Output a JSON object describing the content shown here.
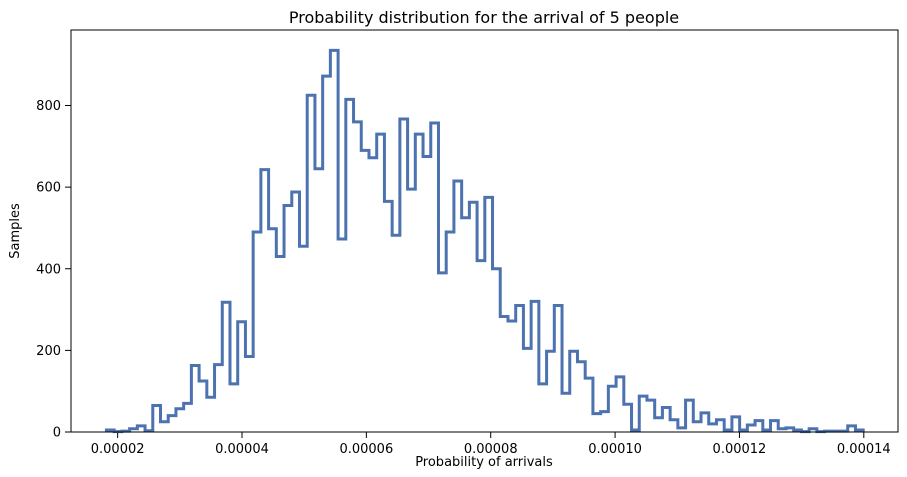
{
  "chart_data": {
    "type": "histogram",
    "title": "Probability distribution for the arrival of 5 people",
    "xlabel": "Probability of arrivals",
    "ylabel": "Samples",
    "xlim": [
      1.25e-05,
      0.0001455
    ],
    "ylim": [
      0,
      985
    ],
    "x_ticks": [
      {
        "value": 2e-05,
        "label": "0.00002"
      },
      {
        "value": 4e-05,
        "label": "0.00004"
      },
      {
        "value": 6e-05,
        "label": "0.00006"
      },
      {
        "value": 8e-05,
        "label": "0.00008"
      },
      {
        "value": 0.0001,
        "label": "0.00010"
      },
      {
        "value": 0.00012,
        "label": "0.00012"
      },
      {
        "value": 0.00014,
        "label": "0.00014"
      }
    ],
    "y_ticks": [
      {
        "value": 0,
        "label": "0"
      },
      {
        "value": 200,
        "label": "200"
      },
      {
        "value": 400,
        "label": "400"
      },
      {
        "value": 600,
        "label": "600"
      },
      {
        "value": 800,
        "label": "800"
      }
    ],
    "bin_start": 1.82e-05,
    "bin_end": 0.0001399,
    "counts": [
      5,
      1,
      2,
      8,
      15,
      3,
      65,
      25,
      40,
      57,
      70,
      163,
      125,
      85,
      165,
      318,
      118,
      270,
      185,
      490,
      643,
      498,
      430,
      555,
      588,
      455,
      825,
      645,
      872,
      935,
      473,
      815,
      760,
      690,
      672,
      730,
      565,
      482,
      767,
      595,
      730,
      675,
      757,
      390,
      490,
      615,
      525,
      563,
      420,
      575,
      400,
      283,
      272,
      310,
      205,
      320,
      118,
      198,
      310,
      95,
      198,
      172,
      132,
      45,
      50,
      112,
      135,
      68,
      5,
      88,
      78,
      35,
      60,
      30,
      10,
      78,
      25,
      47,
      20,
      30,
      5,
      37,
      5,
      17,
      28,
      5,
      28,
      8,
      10,
      5,
      1,
      8,
      1,
      2,
      2,
      2,
      15,
      5
    ],
    "grid": false,
    "legend": "none",
    "style": {
      "line_color": "#4C72B0",
      "line_width": 3
    }
  }
}
